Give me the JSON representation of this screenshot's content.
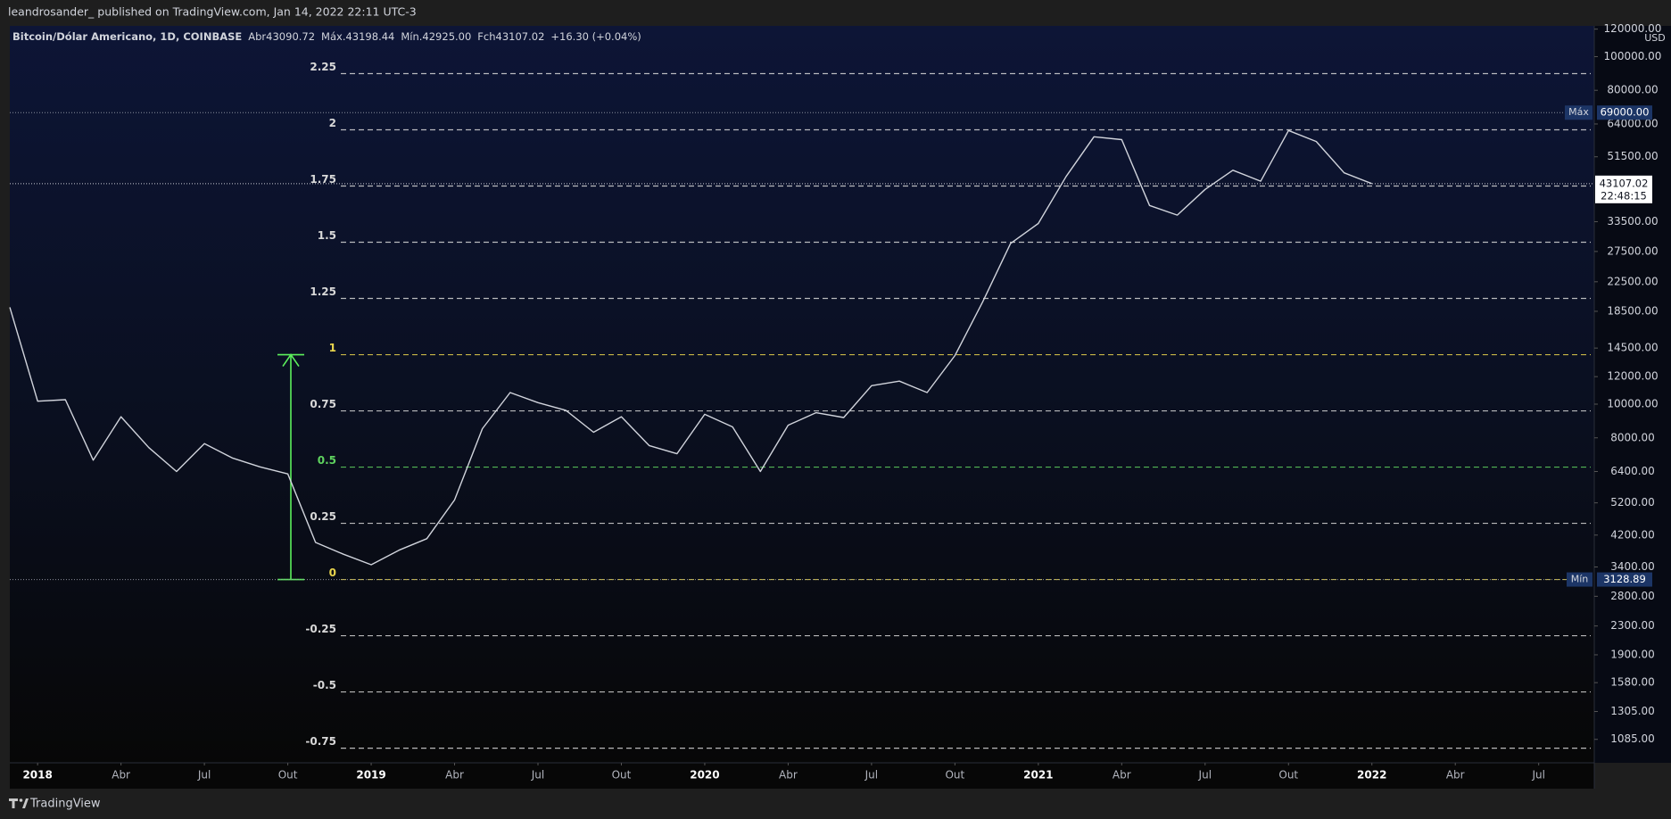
{
  "published": "leandrosander_ published on TradingView.com, Jan 14, 2022 22:11 UTC-3",
  "footer": "TradingView",
  "chart_data": {
    "type": "line",
    "title": "Bitcoin/Dólar Americano, 1D, COINBASE",
    "ohlc": [
      {
        "label": "Abr",
        "value": "43090.72"
      },
      {
        "label": "Máx.",
        "value": "43198.44"
      },
      {
        "label": "Mín.",
        "value": "42925.00"
      },
      {
        "label": "Fch",
        "value": "43107.02"
      }
    ],
    "change": "+16.30 (+0.04%)",
    "currency": "USD",
    "color": "#d1d4dc",
    "x": [
      "2017-12",
      "2018-01",
      "2018-02",
      "2018-03",
      "2018-04",
      "2018-05",
      "2018-06",
      "2018-07",
      "2018-08",
      "2018-09",
      "2018-10",
      "2018-11",
      "2018-12",
      "2019-01",
      "2019-02",
      "2019-03",
      "2019-04",
      "2019-05",
      "2019-06",
      "2019-07",
      "2019-08",
      "2019-09",
      "2019-10",
      "2019-11",
      "2019-12",
      "2020-01",
      "2020-02",
      "2020-03",
      "2020-04",
      "2020-05",
      "2020-06",
      "2020-07",
      "2020-08",
      "2020-09",
      "2020-10",
      "2020-11",
      "2020-12",
      "2021-01",
      "2021-02",
      "2021-03",
      "2021-04",
      "2021-05",
      "2021-06",
      "2021-07",
      "2021-08",
      "2021-09",
      "2021-10",
      "2021-11",
      "2021-12",
      "2022-01"
    ],
    "values": [
      19000,
      10200,
      10300,
      6900,
      9200,
      7500,
      6400,
      7700,
      7000,
      6600,
      6300,
      4000,
      3700,
      3450,
      3800,
      4100,
      5300,
      8500,
      10800,
      10100,
      9600,
      8300,
      9200,
      7600,
      7200,
      9350,
      8600,
      6400,
      8700,
      9450,
      9150,
      11300,
      11650,
      10800,
      13800,
      19700,
      29000,
      33100,
      45200,
      58800,
      57700,
      37300,
      35000,
      41500,
      47100,
      43800,
      61300,
      57000,
      46300,
      43107.02
    ],
    "xlim": [
      "2017-12",
      "2022-09"
    ],
    "xticks": [
      {
        "value": "2018-01",
        "label": "2018"
      },
      {
        "value": "2018-04",
        "label": "Abr"
      },
      {
        "value": "2018-07",
        "label": "Jul"
      },
      {
        "value": "2018-10",
        "label": "Out"
      },
      {
        "value": "2019-01",
        "label": "2019"
      },
      {
        "value": "2019-04",
        "label": "Abr"
      },
      {
        "value": "2019-07",
        "label": "Jul"
      },
      {
        "value": "2019-10",
        "label": "Out"
      },
      {
        "value": "2020-01",
        "label": "2020"
      },
      {
        "value": "2020-04",
        "label": "Abr"
      },
      {
        "value": "2020-07",
        "label": "Jul"
      },
      {
        "value": "2020-10",
        "label": "Out"
      },
      {
        "value": "2021-01",
        "label": "2021"
      },
      {
        "value": "2021-04",
        "label": "Abr"
      },
      {
        "value": "2021-07",
        "label": "Jul"
      },
      {
        "value": "2021-10",
        "label": "Out"
      },
      {
        "value": "2022-01",
        "label": "2022"
      },
      {
        "value": "2022-04",
        "label": "Abr"
      },
      {
        "value": "2022-07",
        "label": "Jul"
      }
    ],
    "ylim": [
      929,
      122600
    ],
    "log_scale": true,
    "yticks": [
      {
        "value": 120000,
        "label": "120000.00"
      },
      {
        "value": 100000,
        "label": "100000.00"
      },
      {
        "value": 80000,
        "label": "80000.00"
      },
      {
        "value": 64000,
        "label": "64000.00"
      },
      {
        "value": 51500,
        "label": "51500.00"
      },
      {
        "value": 33500,
        "label": "33500.00"
      },
      {
        "value": 27500,
        "label": "27500.00"
      },
      {
        "value": 22500,
        "label": "22500.00"
      },
      {
        "value": 18500,
        "label": "18500.00"
      },
      {
        "value": 14500,
        "label": "14500.00"
      },
      {
        "value": 12000,
        "label": "12000.00"
      },
      {
        "value": 10000,
        "label": "10000.00"
      },
      {
        "value": 8000,
        "label": "8000.00"
      },
      {
        "value": 6400,
        "label": "6400.00"
      },
      {
        "value": 5200,
        "label": "5200.00"
      },
      {
        "value": 4200,
        "label": "4200.00"
      },
      {
        "value": 3400,
        "label": "3400.00"
      },
      {
        "value": 2800,
        "label": "2800.00"
      },
      {
        "value": 2300,
        "label": "2300.00"
      },
      {
        "value": 1900,
        "label": "1900.00"
      },
      {
        "value": 1580,
        "label": "1580.00"
      },
      {
        "value": 1305,
        "label": "1305.00"
      },
      {
        "value": 1085,
        "label": "1085.00"
      }
    ],
    "max": {
      "label": "Máx",
      "value": 69000,
      "value_label": "69000.00"
    },
    "min": {
      "label": "Mín",
      "value": 3128.89
    },
    "last": {
      "value": 43107.02,
      "time": "22:48:15"
    },
    "fib": {
      "range": [
        3128.89,
        13880
      ],
      "levels": [
        2.25,
        2,
        1.75,
        1.5,
        1.25,
        1,
        0.75,
        0.5,
        0.25,
        0,
        -0.25,
        -0.5,
        -0.75
      ],
      "colors": [
        "#d8d8d8",
        "#d8d8d8",
        "#d8d8d8",
        "#d8d8d8",
        "#d8d8d8",
        "#e8d44d",
        "#d8d8d8",
        "#5fd35f",
        "#d8d8d8",
        "#e8d44d",
        "#d8d8d8",
        "#d8d8d8",
        "#d8d8d8"
      ],
      "arrow_color": "#5cf05c"
    }
  }
}
